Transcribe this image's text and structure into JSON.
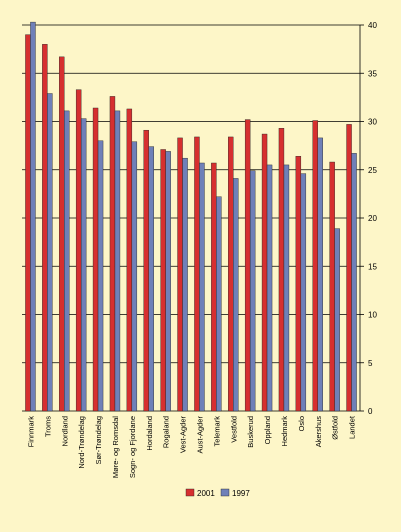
{
  "chart_data": {
    "type": "bar",
    "orientation": "vertical",
    "categories": [
      "Finnmark",
      "Troms",
      "Nordland",
      "Nord-Trøndelag",
      "Sør-Trøndelag",
      "Møre- og Romsdal",
      "Sogn- og Fjordane",
      "Hordaland",
      "Rogaland",
      "Vest-Agder",
      "Aust-Agder",
      "Telemark",
      "Vestfold",
      "Buskerud",
      "Oppland",
      "Hedmark",
      "Oslo",
      "Akershus",
      "Østfold",
      "Landet"
    ],
    "series": [
      {
        "name": "2001",
        "color": "#d62f2f",
        "values": [
          39.0,
          38.0,
          36.7,
          33.3,
          31.4,
          32.6,
          31.3,
          29.1,
          27.1,
          28.3,
          28.4,
          25.7,
          28.4,
          30.2,
          28.7,
          29.3,
          26.4,
          30.1,
          25.8,
          29.7
        ]
      },
      {
        "name": "1997",
        "color": "#6f80b8",
        "values": [
          40.3,
          32.9,
          31.1,
          30.3,
          28.0,
          31.1,
          27.9,
          27.4,
          26.9,
          26.2,
          25.7,
          22.2,
          24.1,
          24.9,
          25.5,
          25.5,
          24.6,
          28.3,
          18.9,
          26.7
        ]
      }
    ],
    "y_ticks": [
      "0",
      "5",
      "10",
      "15",
      "20",
      "25",
      "30",
      "35",
      "40"
    ],
    "ylim": [
      0,
      40
    ],
    "y_axis_side": "right",
    "grid": true,
    "legend_position": "bottom",
    "colors": {
      "background": "#fdf6c8",
      "plot_background": "#fdf6c8",
      "grid": "#000000",
      "bar_2001": "#d62f2f",
      "bar_1997": "#6f80b8"
    }
  }
}
